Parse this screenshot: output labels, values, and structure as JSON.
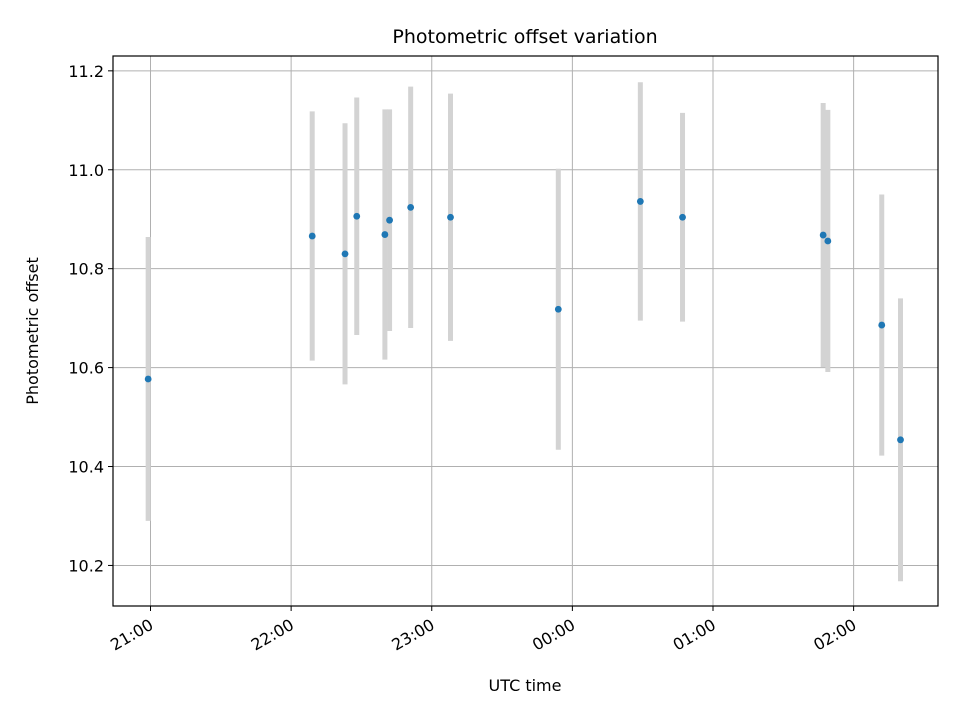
{
  "chart_data": {
    "type": "scatter",
    "title": "Photometric offset variation",
    "xlabel": "UTC time",
    "ylabel": "Photometric offset",
    "x_axis": {
      "range": [
        "20:44",
        "02:36"
      ],
      "ticks": [
        {
          "t": "21:00",
          "label": "21:00"
        },
        {
          "t": "22:00",
          "label": "22:00"
        },
        {
          "t": "23:00",
          "label": "23:00"
        },
        {
          "t": "00:00",
          "label": "00:00"
        },
        {
          "t": "01:00",
          "label": "01:00"
        },
        {
          "t": "02:00",
          "label": "02:00"
        }
      ]
    },
    "y_axis": {
      "range": [
        10.118,
        11.23
      ],
      "ticks": [
        {
          "v": 10.2,
          "label": "10.2"
        },
        {
          "v": 10.4,
          "label": "10.4"
        },
        {
          "v": 10.6,
          "label": "10.6"
        },
        {
          "v": 10.8,
          "label": "10.8"
        },
        {
          "v": 11.0,
          "label": "11.0"
        },
        {
          "v": 11.2,
          "label": "11.2"
        }
      ]
    },
    "grid": true,
    "marker_color": "#1f77b4",
    "errorbar_color": "#d3d3d3",
    "points": [
      {
        "t": "20:59",
        "y": 10.577,
        "err": 0.287
      },
      {
        "t": "22:09",
        "y": 10.866,
        "err": 0.252
      },
      {
        "t": "22:23",
        "y": 10.83,
        "err": 0.264
      },
      {
        "t": "22:28",
        "y": 10.906,
        "err": 0.24
      },
      {
        "t": "22:40",
        "y": 10.869,
        "err": 0.253
      },
      {
        "t": "22:42",
        "y": 10.898,
        "err": 0.224
      },
      {
        "t": "22:51",
        "y": 10.924,
        "err": 0.244
      },
      {
        "t": "23:08",
        "y": 10.904,
        "err": 0.25
      },
      {
        "t": "23:54",
        "y": 10.718,
        "err": 0.284
      },
      {
        "t": "00:29",
        "y": 10.936,
        "err": 0.241
      },
      {
        "t": "00:47",
        "y": 10.904,
        "err": 0.211
      },
      {
        "t": "01:47",
        "y": 10.868,
        "err": 0.267
      },
      {
        "t": "01:49",
        "y": 10.856,
        "err": 0.265
      },
      {
        "t": "02:12",
        "y": 10.686,
        "err": 0.264
      },
      {
        "t": "02:20",
        "y": 10.454,
        "err": 0.286
      }
    ]
  }
}
